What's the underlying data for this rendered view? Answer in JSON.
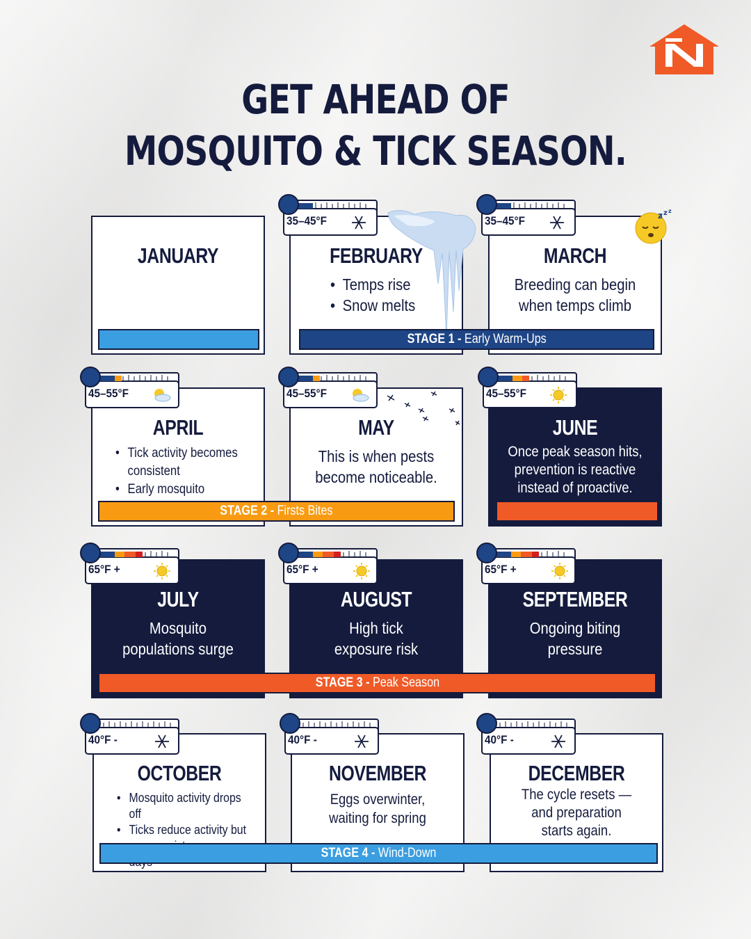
{
  "title": {
    "line1": "GET AHEAD OF",
    "line2": "MOSQUITO & TICK SEASON."
  },
  "colors": {
    "navy": "#141b3d",
    "stage1": "#1e4585",
    "stage2": "#f99b12",
    "stage3": "#f05a27",
    "stage4": "#3a9ee0",
    "logo": "#f05a27"
  },
  "months": [
    {
      "name": "JANUARY",
      "temp": "",
      "weather_icon": "",
      "body": [],
      "bullets": []
    },
    {
      "name": "FEBRUARY",
      "temp": "35–45°F",
      "weather_icon": "snowflake-icon",
      "bullets": [
        "Temps rise",
        "Snow melts"
      ]
    },
    {
      "name": "MARCH",
      "temp": "35–45°F",
      "weather_icon": "snowflake-icon",
      "body": [
        "Breeding can begin",
        "when temps climb"
      ]
    },
    {
      "name": "APRIL",
      "temp": "45–55°F",
      "weather_icon": "partly-cloudy-icon",
      "bullets": [
        "Tick activity becomes consistent",
        "Early mosquito sightings"
      ]
    },
    {
      "name": "MAY",
      "temp": "45–55°F",
      "weather_icon": "partly-cloudy-icon",
      "body": [
        "This is when pests",
        "become noticeable."
      ]
    },
    {
      "name": "JUNE",
      "temp": "45–55°F",
      "weather_icon": "sun-icon",
      "body": [
        "Once peak season hits,",
        "prevention is reactive",
        "instead of proactive."
      ]
    },
    {
      "name": "JULY",
      "temp": "65°F +",
      "weather_icon": "sun-icon",
      "body": [
        "Mosquito",
        "populations surge"
      ]
    },
    {
      "name": "AUGUST",
      "temp": "65°F +",
      "weather_icon": "sun-icon",
      "body": [
        "High tick",
        "exposure risk"
      ]
    },
    {
      "name": "SEPTEMBER",
      "temp": "65°F +",
      "weather_icon": "sun-icon",
      "body": [
        "Ongoing biting",
        "pressure"
      ]
    },
    {
      "name": "OCTOBER",
      "temp": "40°F -",
      "weather_icon": "snowflake-icon",
      "bullets": [
        "Mosquito activity drops off",
        "Ticks reduce activity but may persist on warm days"
      ]
    },
    {
      "name": "NOVEMBER",
      "temp": "40°F -",
      "weather_icon": "snowflake-icon",
      "body": [
        "Eggs overwinter,",
        "waiting for spring"
      ]
    },
    {
      "name": "DECEMBER",
      "temp": "40°F -",
      "weather_icon": "snowflake-icon",
      "body": [
        "The cycle resets —",
        "and preparation",
        "starts again."
      ]
    }
  ],
  "stages": [
    {
      "label": "STAGE 1 -",
      "name": "Early Warm-Ups"
    },
    {
      "label": "STAGE 2 -",
      "name": "Firsts Bites"
    },
    {
      "label": "STAGE 3 -",
      "name": "Peak Season"
    },
    {
      "label": "STAGE 4 -",
      "name": "Wind-Down"
    }
  ]
}
